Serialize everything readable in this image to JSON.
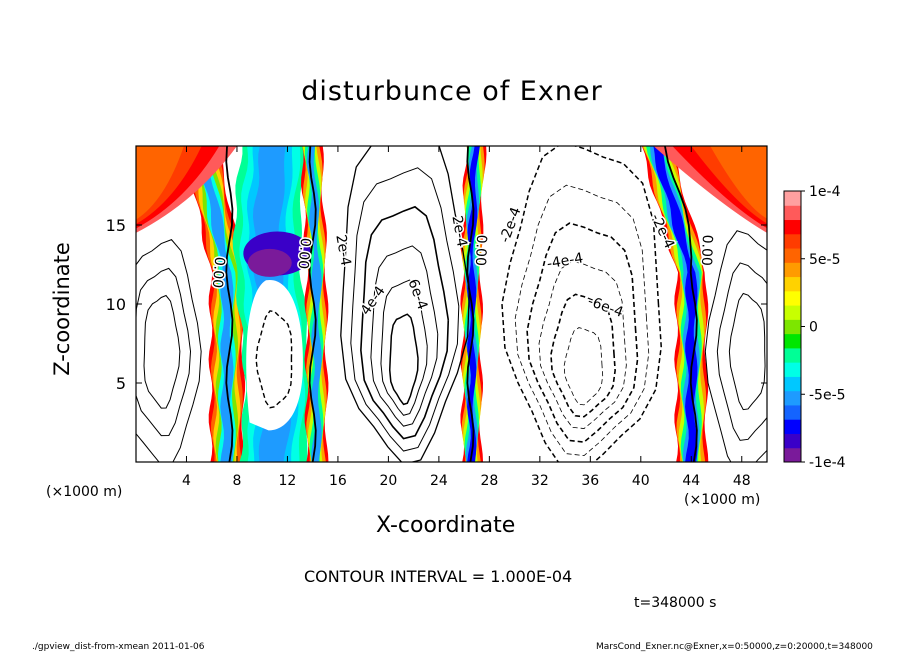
{
  "title": "disturbunce of Exner",
  "x_label": "X-coordinate",
  "y_label": "Z-coordinate",
  "x_unit_left": "(×1000 m)",
  "x_unit_right": "(×1000 m)",
  "contour_interval": "CONTOUR INTERVAL = 1.000E-04",
  "time": "t=348000 s",
  "footer_left": "./gpview_dist-from-xmean  2011-01-06",
  "footer_right": "MarsCond_Exner.nc@Exner,x=0:50000,z=0:20000,t=348000",
  "chart_data": {
    "type": "heatmap",
    "title": "disturbunce of Exner",
    "xlabel": "X-coordinate",
    "ylabel": "Z-coordinate",
    "xlim": [
      0,
      50
    ],
    "ylim": [
      0,
      20
    ],
    "x_ticks": [
      4,
      8,
      12,
      16,
      20,
      24,
      28,
      32,
      36,
      40,
      44,
      48
    ],
    "y_ticks": [
      5,
      10,
      15
    ],
    "colorbar": {
      "min": -0.0001,
      "max": 0.0001,
      "ticks": [
        {
          "value": 0.0001,
          "label": "1e-4"
        },
        {
          "value": 5e-05,
          "label": "5e-5"
        },
        {
          "value": 0,
          "label": "0"
        },
        {
          "value": -5e-05,
          "label": "-5e-5"
        },
        {
          "value": -0.0001,
          "label": "-1e-4"
        }
      ],
      "colors": [
        "#7a1a9a",
        "#3a00c8",
        "#0000ff",
        "#1464ff",
        "#1e9bff",
        "#00c8ff",
        "#00ffe6",
        "#00ff96",
        "#00e600",
        "#7de600",
        "#c8ff00",
        "#ffff00",
        "#ffd200",
        "#ff9b00",
        "#ff6400",
        "#ff3c00",
        "#ff0000",
        "#ff5a5a",
        "#ffa0a0"
      ]
    },
    "contour_labels": [
      {
        "text": "0.00",
        "x": 6.5,
        "z": 12.0,
        "angle": 95
      },
      {
        "text": "0.00",
        "x": 13.3,
        "z": 13.2,
        "angle": 95
      },
      {
        "text": "2e-4",
        "x": 16.4,
        "z": 13.4,
        "angle": 80
      },
      {
        "text": "4e-4",
        "x": 18.8,
        "z": 10.2,
        "angle": -55
      },
      {
        "text": "6e-4",
        "x": 22.3,
        "z": 10.6,
        "angle": 70
      },
      {
        "text": "2e-4",
        "x": 25.6,
        "z": 14.6,
        "angle": 80
      },
      {
        "text": "0.00",
        "x": 27.3,
        "z": 13.4,
        "angle": 92
      },
      {
        "text": "-2e-4",
        "x": 29.7,
        "z": 15.0,
        "angle": -70
      },
      {
        "text": "-4e-4",
        "x": 34.0,
        "z": 12.7,
        "angle": -10
      },
      {
        "text": "-6e-4",
        "x": 37.2,
        "z": 9.8,
        "angle": 20
      },
      {
        "text": "-2e-4",
        "x": 41.7,
        "z": 14.6,
        "angle": 65
      },
      {
        "text": "0.00",
        "x": 45.2,
        "z": 13.4,
        "angle": 92
      }
    ]
  }
}
